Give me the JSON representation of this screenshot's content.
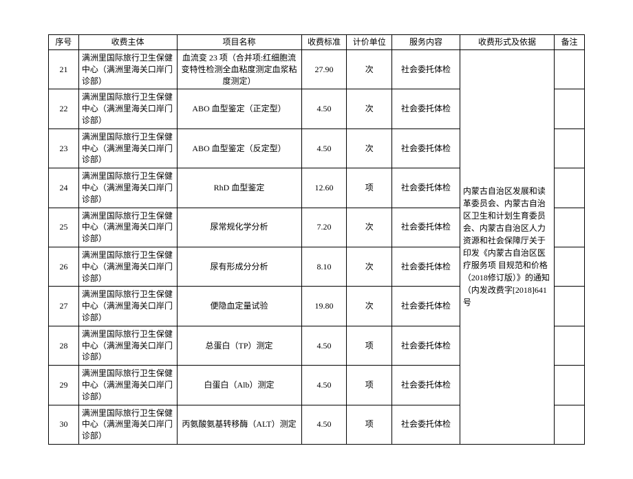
{
  "headers": {
    "seq": "序号",
    "entity": "收费主体",
    "item": "项目名称",
    "fee": "收费标准",
    "unit": "计价单位",
    "service": "服务内容",
    "basis": "收费形式及依据",
    "remark": "备注"
  },
  "entity_text": "满洲里国际旅行卫生保健中心（满洲里海关口岸门诊部）",
  "service_text": "社会委托体检",
  "basis_text": "内蒙古自治区发展和读革委员会、内蒙古自治区卫生和计划生育委员会、内蒙古自治区人力资源和社会保障厅关于印发《内蒙古自治区医疗服务项\n目规范和价格（2018修订版）》的通知\n（内发改费字[2018]641 号",
  "rows": [
    {
      "seq": "21",
      "item": "血流变 23 项（合并项:红细胞流变特性检测全血粘度测定血浆粘度测定）",
      "fee": "27.90",
      "unit": "次"
    },
    {
      "seq": "22",
      "item": "ABO 血型鉴定（正定型）",
      "fee": "4.50",
      "unit": "次"
    },
    {
      "seq": "23",
      "item": "ABO 血型鉴定（反定型）",
      "fee": "4.50",
      "unit": "次"
    },
    {
      "seq": "24",
      "item": "RhD 血型鉴定",
      "fee": "12.60",
      "unit": "项"
    },
    {
      "seq": "25",
      "item": "尿常规化学分析",
      "fee": "7.20",
      "unit": "次"
    },
    {
      "seq": "26",
      "item": "尿有形成分分析",
      "fee": "8.10",
      "unit": "次"
    },
    {
      "seq": "27",
      "item": "便隐血定量试验",
      "fee": "19.80",
      "unit": "次"
    },
    {
      "seq": "28",
      "item": "总蛋白（TP）测定",
      "fee": "4.50",
      "unit": "项"
    },
    {
      "seq": "29",
      "item": "白蛋白（Alb）测定",
      "fee": "4.50",
      "unit": "项"
    },
    {
      "seq": "30",
      "item": "丙氨酸氨基转移酶（ALT）测定",
      "fee": "4.50",
      "unit": "项"
    }
  ],
  "colors": {
    "border": "#000000",
    "background": "#ffffff",
    "text": "#000000"
  },
  "font": {
    "family": "SimSun",
    "size_pt": 12
  }
}
